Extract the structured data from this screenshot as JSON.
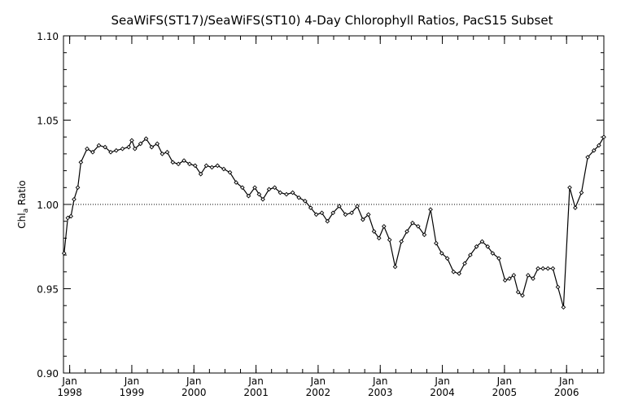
{
  "chart_data": {
    "type": "line",
    "title": "SeaWiFS(ST17)/SeaWiFS(ST10) 4-Day Chlorophyll Ratios, PacS15 Subset",
    "xlabel": "",
    "ylabel_main": "Chl",
    "ylabel_sub": "a",
    "ylabel_rest": " Ratio",
    "xlim": [
      1997.9,
      2006.6
    ],
    "ylim": [
      0.9,
      1.1
    ],
    "yticks": [
      "0.90",
      "0.95",
      "1.00",
      "1.05",
      "1.10"
    ],
    "ytick_values": [
      0.9,
      0.95,
      1.0,
      1.05,
      1.1
    ],
    "xticks": [
      {
        "year": 1998,
        "month": "Jan",
        "label": "1998"
      },
      {
        "year": 1999,
        "month": "Jan",
        "label": "1999"
      },
      {
        "year": 2000,
        "month": "Jan",
        "label": "2000"
      },
      {
        "year": 2001,
        "month": "Jan",
        "label": "2001"
      },
      {
        "year": 2002,
        "month": "Jan",
        "label": "2002"
      },
      {
        "year": 2003,
        "month": "Jan",
        "label": "2003"
      },
      {
        "year": 2004,
        "month": "Jan",
        "label": "2004"
      },
      {
        "year": 2005,
        "month": "Jan",
        "label": "2005"
      },
      {
        "year": 2006,
        "month": "Jan",
        "label": "2006"
      }
    ],
    "reference_line": 1.0,
    "grid": false,
    "series": [
      {
        "x": [
          1997.91,
          1997.97,
          1998.02,
          1998.07,
          1998.13,
          1998.18,
          1998.28,
          1998.37,
          1998.47,
          1998.57,
          1998.66,
          1998.75,
          1998.85,
          1998.95,
          1999.0,
          1999.05,
          1999.14,
          1999.23,
          1999.32,
          1999.41,
          1999.49,
          1999.57,
          1999.66,
          1999.75,
          1999.84,
          1999.93,
          2000.02,
          2000.11,
          2000.2,
          2000.29,
          2000.38,
          2000.48,
          2000.58,
          2000.68,
          2000.78,
          2000.88,
          2000.98,
          2001.05,
          2001.11,
          2001.21,
          2001.3,
          2001.39,
          2001.49,
          2001.59,
          2001.69,
          2001.79,
          2001.88,
          2001.97,
          2002.06,
          2002.15,
          2002.24,
          2002.34,
          2002.44,
          2002.54,
          2002.63,
          2002.72,
          2002.81,
          2002.9,
          2002.98,
          2003.06,
          2003.15,
          2003.24,
          2003.34,
          2003.43,
          2003.52,
          2003.61,
          2003.71,
          2003.81,
          2003.9,
          2003.99,
          2004.08,
          2004.18,
          2004.27,
          2004.36,
          2004.45,
          2004.55,
          2004.64,
          2004.73,
          2004.81,
          2004.91,
          2005.01,
          2005.08,
          2005.15,
          2005.22,
          2005.29,
          2005.38,
          2005.46,
          2005.54,
          2005.62,
          2005.7,
          2005.78,
          2005.86,
          2005.95,
          2006.05,
          2006.14,
          2006.24,
          2006.34,
          2006.44,
          2006.52,
          2006.6
        ],
        "y": [
          0.971,
          0.992,
          0.993,
          1.003,
          1.01,
          1.025,
          1.033,
          1.031,
          1.035,
          1.034,
          1.031,
          1.032,
          1.033,
          1.034,
          1.038,
          1.033,
          1.036,
          1.039,
          1.034,
          1.036,
          1.03,
          1.031,
          1.025,
          1.024,
          1.026,
          1.024,
          1.023,
          1.018,
          1.023,
          1.022,
          1.023,
          1.021,
          1.019,
          1.013,
          1.01,
          1.005,
          1.01,
          1.006,
          1.003,
          1.009,
          1.01,
          1.007,
          1.006,
          1.007,
          1.004,
          1.002,
          0.998,
          0.994,
          0.995,
          0.99,
          0.995,
          0.999,
          0.994,
          0.995,
          0.999,
          0.991,
          0.994,
          0.984,
          0.98,
          0.987,
          0.979,
          0.963,
          0.978,
          0.984,
          0.989,
          0.987,
          0.982,
          0.997,
          0.977,
          0.971,
          0.968,
          0.96,
          0.959,
          0.965,
          0.97,
          0.975,
          0.978,
          0.975,
          0.971,
          0.968,
          0.955,
          0.956,
          0.958,
          0.948,
          0.946,
          0.958,
          0.956,
          0.962,
          0.962,
          0.962,
          0.962,
          0.951,
          0.939,
          1.01,
          0.998,
          1.007,
          1.028,
          1.032,
          1.035,
          1.04
        ]
      }
    ]
  }
}
